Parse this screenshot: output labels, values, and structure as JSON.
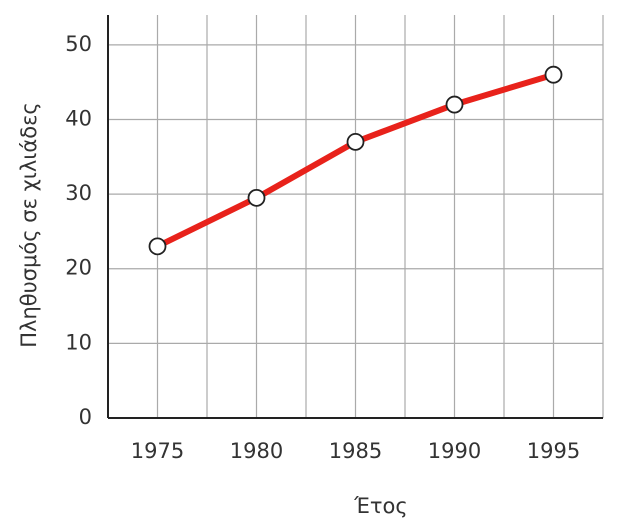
{
  "chart_data": {
    "type": "line",
    "x_label": "Έτος",
    "y_label": "Πληθυσμός σε χιλιάδες",
    "x": [
      1975,
      1980,
      1985,
      1990,
      1995
    ],
    "series": [
      {
        "name": "Πληθυσμός",
        "color": "#e8221b",
        "values": [
          23,
          29.5,
          37,
          42,
          46
        ]
      }
    ],
    "xlim": [
      1972.5,
      1997.5
    ],
    "xticks": [
      1975,
      1980,
      1985,
      1990,
      1995
    ],
    "xgrid": [
      1975,
      1977.5,
      1980,
      1982.5,
      1985,
      1987.5,
      1990,
      1992.5,
      1995,
      1997.5
    ],
    "ylim": [
      0,
      54
    ],
    "yticks": [
      0,
      10,
      20,
      30,
      40,
      50
    ],
    "grid": true
  }
}
